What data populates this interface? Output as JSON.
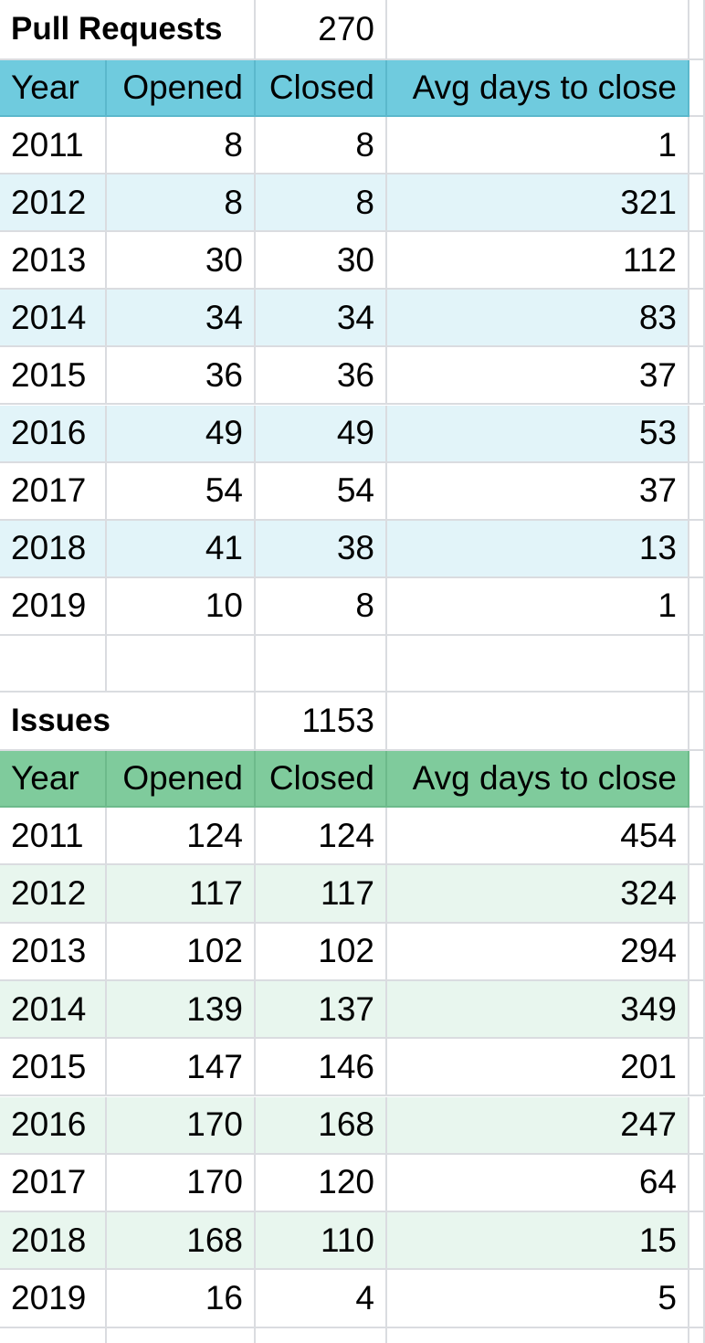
{
  "pull_requests": {
    "title": "Pull Requests",
    "total": "270",
    "header": [
      "Year",
      "Opened",
      "Closed",
      "Avg days to close"
    ],
    "rows": [
      [
        "2011",
        "8",
        "8",
        "1"
      ],
      [
        "2012",
        "8",
        "8",
        "321"
      ],
      [
        "2013",
        "30",
        "30",
        "112"
      ],
      [
        "2014",
        "34",
        "34",
        "83"
      ],
      [
        "2015",
        "36",
        "36",
        "37"
      ],
      [
        "2016",
        "49",
        "49",
        "53"
      ],
      [
        "2017",
        "54",
        "54",
        "37"
      ],
      [
        "2018",
        "41",
        "38",
        "13"
      ],
      [
        "2019",
        "10",
        "8",
        "1"
      ]
    ]
  },
  "issues": {
    "title": "Issues",
    "total": "1153",
    "header": [
      "Year",
      "Opened",
      "Closed",
      "Avg days to close"
    ],
    "rows": [
      [
        "2011",
        "124",
        "124",
        "454"
      ],
      [
        "2012",
        "117",
        "117",
        "324"
      ],
      [
        "2013",
        "102",
        "102",
        "294"
      ],
      [
        "2014",
        "139",
        "137",
        "349"
      ],
      [
        "2015",
        "147",
        "146",
        "201"
      ],
      [
        "2016",
        "170",
        "168",
        "247"
      ],
      [
        "2017",
        "170",
        "120",
        "64"
      ],
      [
        "2018",
        "168",
        "110",
        "15"
      ],
      [
        "2019",
        "16",
        "4",
        "5"
      ]
    ]
  },
  "colors": {
    "pr_header": "#6fcbde",
    "pr_band": "#e2f4f9",
    "issues_header": "#7fcb9c",
    "issues_band": "#e8f6ee",
    "grid": "#dadce0"
  }
}
